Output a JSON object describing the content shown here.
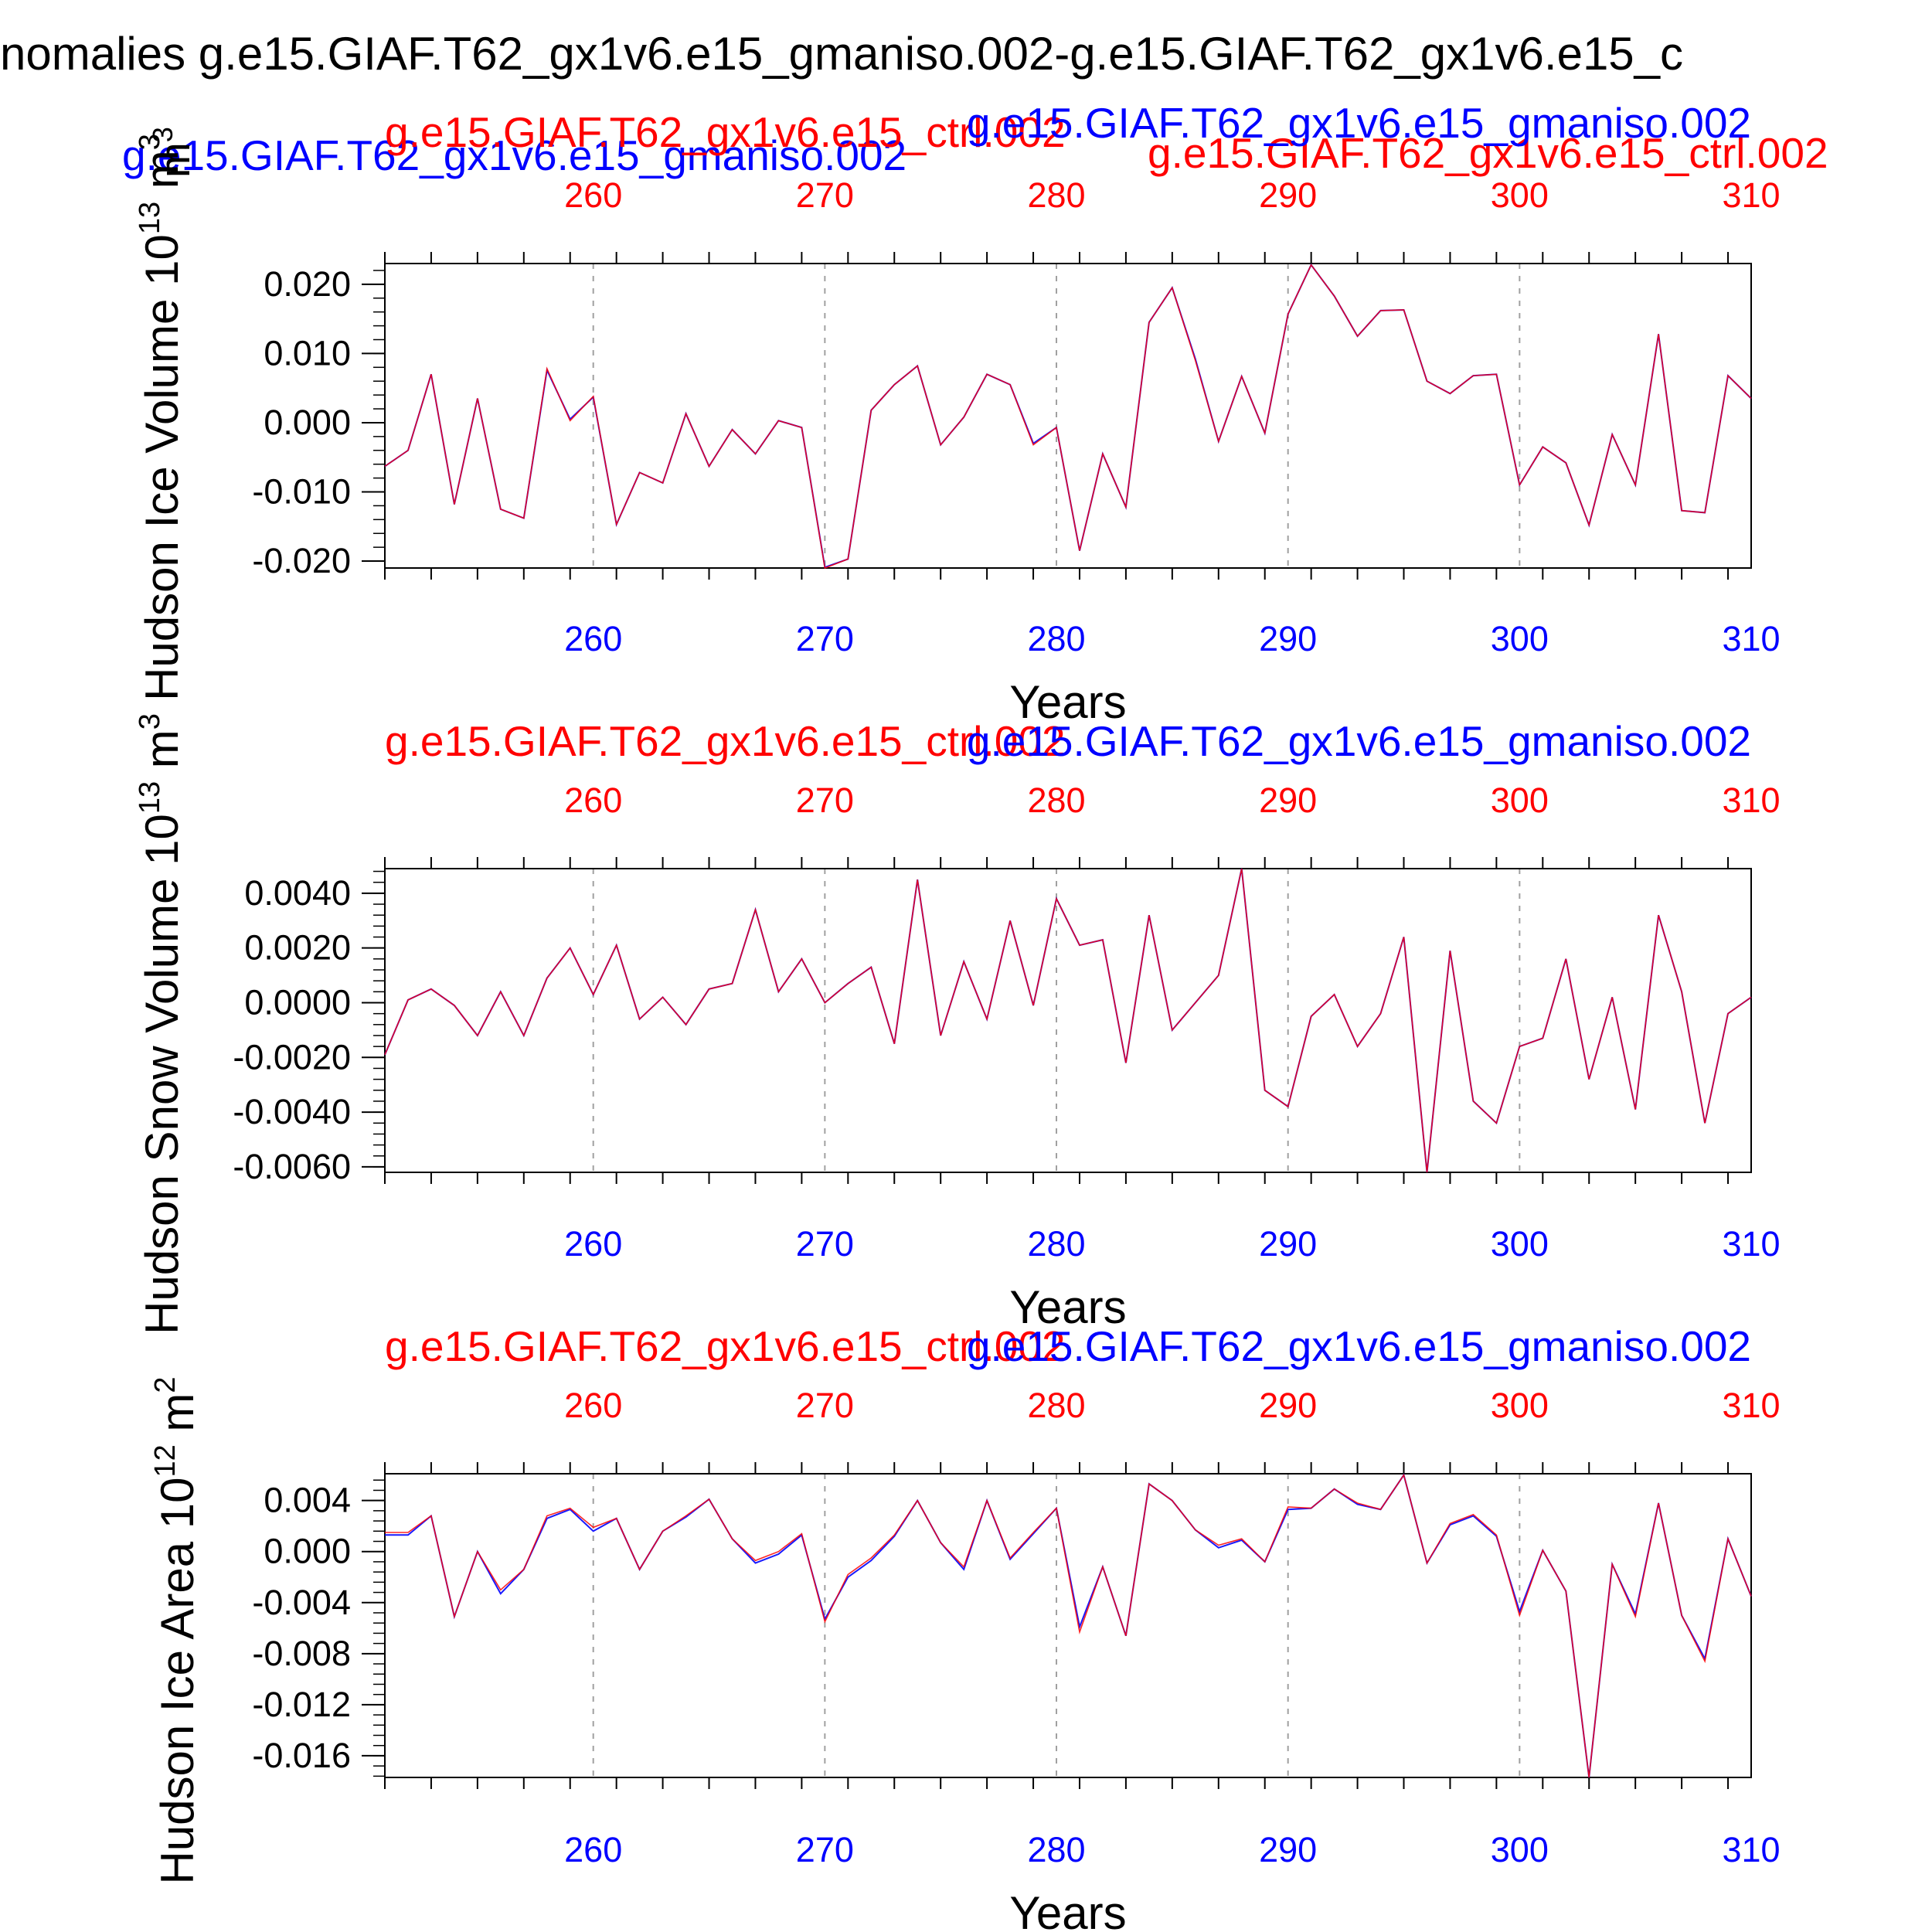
{
  "main_title": "nomalies g.e15.GIAF.T62_gx1v6.e15_gmaniso.002-g.e15.GIAF.T62_gx1v6.e15_c",
  "colors": {
    "ctrl": "#ff0000",
    "aniso": "#0000ff",
    "axis": "#000000",
    "grid": "#a0a0a0"
  },
  "stray_labels": {
    "aniso_left": "g.e15.GIAF.T62_gx1v6.e15_gmaniso.002",
    "ctrl_right": "g.e15.GIAF.T62_gx1v6.e15_ctrl.002",
    "unit_m3": "m",
    "unit_m3_sup": "3"
  },
  "chart_data": [
    {
      "type": "line",
      "ylabel": "Hudson Ice Volume 10",
      "ylabel_sup": "13",
      "ylabel_unit": "m",
      "ylabel_unit_sup": "3",
      "xlabel": "Years",
      "legend_ctrl": "g.e15.GIAF.T62_gx1v6.e15_ctrl.002",
      "legend_aniso": "g.e15.GIAF.T62_gx1v6.e15_gmaniso.002",
      "xlim": [
        251,
        310
      ],
      "ylim": [
        -0.021,
        0.023
      ],
      "xticks": [
        260,
        270,
        280,
        290,
        300,
        310
      ],
      "yticks": [
        -0.02,
        -0.01,
        0.0,
        0.01,
        0.02
      ],
      "ytick_labels": [
        "-0.020",
        "-0.010",
        "0.000",
        "0.010",
        "0.020"
      ],
      "yminor_step": 0.002,
      "x": [
        251,
        252,
        253,
        254,
        255,
        256,
        257,
        258,
        259,
        260,
        261,
        262,
        263,
        264,
        265,
        266,
        267,
        268,
        269,
        270,
        271,
        272,
        273,
        274,
        275,
        276,
        277,
        278,
        279,
        280,
        281,
        282,
        283,
        284,
        285,
        286,
        287,
        288,
        289,
        290,
        291,
        292,
        293,
        294,
        295,
        296,
        297,
        298,
        299,
        300,
        301,
        302,
        303,
        304,
        305,
        306,
        307,
        308,
        309,
        310
      ],
      "series": [
        {
          "name": "g.e15.GIAF.T62_gx1v6.e15_ctrl.002",
          "color": "#ff0000",
          "values": [
            -0.0063,
            -0.004,
            0.007,
            -0.0118,
            0.0035,
            -0.0125,
            -0.0138,
            0.0078,
            0.0003,
            0.0038,
            -0.0147,
            -0.0072,
            -0.0087,
            0.0013,
            -0.0063,
            -0.001,
            -0.0045,
            0.0003,
            -0.0007,
            -0.021,
            -0.0197,
            0.0018,
            0.0055,
            0.0082,
            -0.0032,
            0.0008,
            0.007,
            0.0055,
            -0.0032,
            -0.0007,
            -0.0185,
            -0.0045,
            -0.0122,
            0.0145,
            0.0195,
            0.009,
            -0.0027,
            0.0067,
            -0.0015,
            0.0157,
            0.0228,
            0.0183,
            0.0125,
            0.0162,
            0.0163,
            0.006,
            0.0042,
            0.0068,
            0.007,
            -0.009,
            -0.0035,
            -0.0058,
            -0.0148,
            -0.0017,
            -0.009,
            0.0128,
            -0.0127,
            -0.013,
            0.0068,
            0.0035
          ]
        },
        {
          "name": "g.e15.GIAF.T62_gx1v6.e15_gmaniso.002",
          "color": "#0000ff",
          "values": [
            -0.0063,
            -0.004,
            0.007,
            -0.0118,
            0.0035,
            -0.0125,
            -0.0138,
            0.0076,
            0.0005,
            0.0037,
            -0.0147,
            -0.0072,
            -0.0087,
            0.0013,
            -0.0063,
            -0.001,
            -0.0045,
            0.0003,
            -0.0007,
            -0.0209,
            -0.0197,
            0.0018,
            0.0055,
            0.0082,
            -0.0032,
            0.0008,
            0.007,
            0.0055,
            -0.003,
            -0.0007,
            -0.0185,
            -0.0045,
            -0.0122,
            0.0145,
            0.0195,
            0.0092,
            -0.0027,
            0.0067,
            -0.0015,
            0.0157,
            0.0228,
            0.0183,
            0.0125,
            0.0162,
            0.0163,
            0.006,
            0.0042,
            0.0068,
            0.007,
            -0.009,
            -0.0035,
            -0.0058,
            -0.0148,
            -0.0017,
            -0.009,
            0.0128,
            -0.0127,
            -0.013,
            0.0068,
            0.0035
          ]
        }
      ]
    },
    {
      "type": "line",
      "ylabel": "Hudson Snow Volume 10",
      "ylabel_sup": "13",
      "ylabel_unit": "m",
      "ylabel_unit_sup": "3",
      "xlabel": "Years",
      "legend_ctrl": "g.e15.GIAF.T62_gx1v6.e15_ctrl.002",
      "legend_aniso": "g.e15.GIAF.T62_gx1v6.e15_gmaniso.002",
      "xlim": [
        251,
        310
      ],
      "ylim": [
        -0.0062,
        0.0049
      ],
      "xticks": [
        260,
        270,
        280,
        290,
        300,
        310
      ],
      "yticks": [
        -0.006,
        -0.004,
        -0.002,
        0.0,
        0.002,
        0.004
      ],
      "ytick_labels": [
        "-0.0060",
        "-0.0040",
        "-0.0020",
        "0.0000",
        "0.0020",
        "0.0040"
      ],
      "yminor_step": 0.0004,
      "x": [
        251,
        252,
        253,
        254,
        255,
        256,
        257,
        258,
        259,
        260,
        261,
        262,
        263,
        264,
        265,
        266,
        267,
        268,
        269,
        270,
        271,
        272,
        273,
        274,
        275,
        276,
        277,
        278,
        279,
        280,
        281,
        282,
        283,
        284,
        285,
        286,
        287,
        288,
        289,
        290,
        291,
        292,
        293,
        294,
        295,
        296,
        297,
        298,
        299,
        300,
        301,
        302,
        303,
        304,
        305,
        306,
        307,
        308,
        309,
        310
      ],
      "series": [
        {
          "name": "g.e15.GIAF.T62_gx1v6.e15_ctrl.002",
          "color": "#ff0000",
          "values": [
            -0.0019,
            0.0001,
            0.0005,
            -0.0001,
            -0.0012,
            0.0004,
            -0.0012,
            0.0009,
            0.002,
            0.0003,
            0.0021,
            -0.0006,
            0.0002,
            -0.0008,
            0.0005,
            0.0007,
            0.0034,
            0.0004,
            0.0016,
            0.0,
            0.0007,
            0.0013,
            -0.0015,
            0.0045,
            -0.0012,
            0.0015,
            -0.0006,
            0.003,
            -0.0001,
            0.0038,
            0.0021,
            0.0023,
            -0.0022,
            0.0032,
            -0.001,
            0.0,
            0.001,
            0.0049,
            -0.0032,
            -0.0038,
            -0.0005,
            0.0003,
            -0.0016,
            -0.0004,
            0.0024,
            -0.0062,
            0.0019,
            -0.0036,
            -0.0044,
            -0.0016,
            -0.0013,
            0.0016,
            -0.0028,
            0.0002,
            -0.0039,
            0.0032,
            0.0004,
            -0.0044,
            -0.0004,
            0.0002
          ]
        },
        {
          "name": "g.e15.GIAF.T62_gx1v6.e15_gmaniso.002",
          "color": "#0000ff",
          "values": [
            -0.0019,
            0.0001,
            0.0005,
            -0.0001,
            -0.0012,
            0.0004,
            -0.0012,
            0.0009,
            0.002,
            0.0003,
            0.0021,
            -0.0006,
            0.0002,
            -0.0008,
            0.0005,
            0.0007,
            0.0034,
            0.0004,
            0.0016,
            0.0,
            0.0007,
            0.0013,
            -0.0015,
            0.0045,
            -0.0012,
            0.0015,
            -0.0006,
            0.003,
            -0.0001,
            0.0038,
            0.0021,
            0.0023,
            -0.0022,
            0.0032,
            -0.001,
            0.0,
            0.001,
            0.0049,
            -0.0032,
            -0.0038,
            -0.0005,
            0.0003,
            -0.0016,
            -0.0004,
            0.0024,
            -0.0062,
            0.0019,
            -0.0036,
            -0.0044,
            -0.0016,
            -0.0013,
            0.0016,
            -0.0028,
            0.0002,
            -0.0039,
            0.0032,
            0.0004,
            -0.0044,
            -0.0004,
            0.0002
          ]
        }
      ]
    },
    {
      "type": "line",
      "ylabel": "Hudson Ice Area 10",
      "ylabel_sup": "12",
      "ylabel_unit": "m",
      "ylabel_unit_sup": "2",
      "xlabel": "Years",
      "legend_ctrl": "g.e15.GIAF.T62_gx1v6.e15_ctrl.002",
      "legend_aniso": "g.e15.GIAF.T62_gx1v6.e15_gmaniso.002",
      "xlim": [
        251,
        310
      ],
      "ylim": [
        -0.0177,
        0.0061
      ],
      "xticks": [
        260,
        270,
        280,
        290,
        300,
        310
      ],
      "yticks": [
        -0.016,
        -0.012,
        -0.008,
        -0.004,
        0.0,
        0.004
      ],
      "ytick_labels": [
        "-0.016",
        "-0.012",
        "-0.008",
        "-0.004",
        "0.000",
        "0.004"
      ],
      "yminor_step": 0.0008,
      "x": [
        251,
        252,
        253,
        254,
        255,
        256,
        257,
        258,
        259,
        260,
        261,
        262,
        263,
        264,
        265,
        266,
        267,
        268,
        269,
        270,
        271,
        272,
        273,
        274,
        275,
        276,
        277,
        278,
        279,
        280,
        281,
        282,
        283,
        284,
        285,
        286,
        287,
        288,
        289,
        290,
        291,
        292,
        293,
        294,
        295,
        296,
        297,
        298,
        299,
        300,
        301,
        302,
        303,
        304,
        305,
        306,
        307,
        308,
        309,
        310
      ],
      "series": [
        {
          "name": "g.e15.GIAF.T62_gx1v6.e15_ctrl.002",
          "color": "#ff0000",
          "values": [
            0.0015,
            0.0015,
            0.0028,
            -0.0051,
            0.0,
            -0.003,
            -0.0014,
            0.0028,
            0.0034,
            0.0019,
            0.0026,
            -0.0014,
            0.0016,
            0.0028,
            0.0041,
            0.001,
            -0.0007,
            0.0,
            0.0014,
            -0.0055,
            -0.0018,
            -0.0005,
            0.0013,
            0.004,
            0.0007,
            -0.0012,
            0.004,
            -0.0005,
            0.0015,
            0.0034,
            -0.0063,
            -0.0012,
            -0.0066,
            0.0053,
            0.004,
            0.0017,
            0.0005,
            0.001,
            -0.0008,
            0.0035,
            0.0034,
            0.0049,
            0.0038,
            0.0033,
            0.006,
            -0.0009,
            0.0022,
            0.0029,
            0.0013,
            -0.005,
            0.0001,
            -0.0031,
            -0.0177,
            -0.001,
            -0.0051,
            0.0038,
            -0.005,
            -0.0086,
            0.001,
            -0.0035
          ]
        },
        {
          "name": "g.e15.GIAF.T62_gx1v6.e15_gmaniso.002",
          "color": "#0000ff",
          "values": [
            0.0013,
            0.0013,
            0.0028,
            -0.0051,
            0.0,
            -0.0033,
            -0.0014,
            0.0026,
            0.0033,
            0.0016,
            0.0026,
            -0.0014,
            0.0016,
            0.0027,
            0.0041,
            0.001,
            -0.0009,
            -0.0002,
            0.0013,
            -0.0053,
            -0.002,
            -0.0007,
            0.0012,
            0.004,
            0.0007,
            -0.0014,
            0.004,
            -0.0006,
            0.0014,
            0.0034,
            -0.0059,
            -0.0012,
            -0.0066,
            0.0053,
            0.004,
            0.0017,
            0.0003,
            0.0009,
            -0.0008,
            0.0033,
            0.0034,
            0.0049,
            0.0037,
            0.0033,
            0.006,
            -0.0009,
            0.0021,
            0.0028,
            0.0012,
            -0.0047,
            0.0001,
            -0.0031,
            -0.0177,
            -0.001,
            -0.0049,
            0.0038,
            -0.005,
            -0.0084,
            0.001,
            -0.0035
          ]
        }
      ]
    }
  ]
}
